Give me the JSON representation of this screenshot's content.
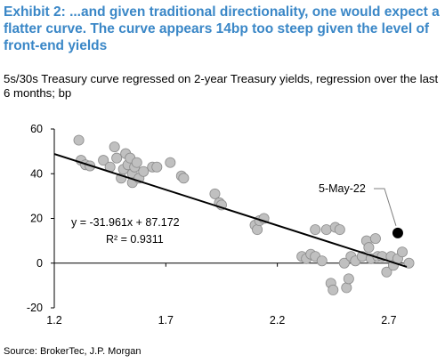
{
  "title": "Exhibit 2: ...and given traditional directionality, one would expect a flatter curve.  The curve appears 14bp too steep given the level of front-end yields",
  "subtitle": "5s/30s Treasury curve regressed on 2-year Treasury yields, regression over the last 6 months; bp",
  "source": "Source: BrokerTec, J.P. Morgan",
  "chart_data": {
    "type": "scatter",
    "xlim": [
      1.2,
      2.8
    ],
    "ylim": [
      -20,
      60
    ],
    "x_ticks": [
      "1.2",
      "1.7",
      "2.2",
      "2.7"
    ],
    "y_ticks": [
      "60",
      "40",
      "20",
      "0",
      "-20"
    ],
    "grid": false,
    "point_color": "#c0c0c0",
    "highlight_color": "#000000",
    "regression": {
      "slope": -31.961,
      "intercept": 87.172,
      "x_range": [
        1.2,
        2.78
      ]
    },
    "equation_label": "y = -31.961x + 87.172",
    "r2_label": "R² = 0.9311",
    "highlight": {
      "label": "5-May-22",
      "x": 2.74,
      "y": 13.5
    },
    "points": [
      {
        "x": 1.31,
        "y": 55
      },
      {
        "x": 1.32,
        "y": 46
      },
      {
        "x": 1.34,
        "y": 44
      },
      {
        "x": 1.36,
        "y": 43.5
      },
      {
        "x": 1.42,
        "y": 46
      },
      {
        "x": 1.45,
        "y": 43
      },
      {
        "x": 1.47,
        "y": 52
      },
      {
        "x": 1.48,
        "y": 47
      },
      {
        "x": 1.5,
        "y": 38
      },
      {
        "x": 1.51,
        "y": 42
      },
      {
        "x": 1.52,
        "y": 49
      },
      {
        "x": 1.53,
        "y": 44
      },
      {
        "x": 1.54,
        "y": 47
      },
      {
        "x": 1.55,
        "y": 40
      },
      {
        "x": 1.55,
        "y": 36
      },
      {
        "x": 1.56,
        "y": 43
      },
      {
        "x": 1.57,
        "y": 45
      },
      {
        "x": 1.58,
        "y": 38
      },
      {
        "x": 1.6,
        "y": 41
      },
      {
        "x": 1.64,
        "y": 43
      },
      {
        "x": 1.66,
        "y": 43
      },
      {
        "x": 1.72,
        "y": 45
      },
      {
        "x": 1.77,
        "y": 39
      },
      {
        "x": 1.78,
        "y": 38
      },
      {
        "x": 1.92,
        "y": 31
      },
      {
        "x": 1.94,
        "y": 27
      },
      {
        "x": 1.95,
        "y": 26
      },
      {
        "x": 2.1,
        "y": 17
      },
      {
        "x": 2.11,
        "y": 15
      },
      {
        "x": 2.12,
        "y": 19
      },
      {
        "x": 2.14,
        "y": 20
      },
      {
        "x": 2.31,
        "y": 3
      },
      {
        "x": 2.33,
        "y": 2
      },
      {
        "x": 2.35,
        "y": 4
      },
      {
        "x": 2.37,
        "y": 3
      },
      {
        "x": 2.37,
        "y": 15
      },
      {
        "x": 2.4,
        "y": 1
      },
      {
        "x": 2.42,
        "y": 15
      },
      {
        "x": 2.44,
        "y": -9
      },
      {
        "x": 2.45,
        "y": -12
      },
      {
        "x": 2.46,
        "y": 16
      },
      {
        "x": 2.48,
        "y": 15
      },
      {
        "x": 2.5,
        "y": 0
      },
      {
        "x": 2.51,
        "y": -11
      },
      {
        "x": 2.52,
        "y": -7
      },
      {
        "x": 2.53,
        "y": 3
      },
      {
        "x": 2.55,
        "y": 1
      },
      {
        "x": 2.58,
        "y": 3
      },
      {
        "x": 2.6,
        "y": 10
      },
      {
        "x": 2.61,
        "y": 7
      },
      {
        "x": 2.62,
        "y": 2
      },
      {
        "x": 2.64,
        "y": 11
      },
      {
        "x": 2.65,
        "y": 3
      },
      {
        "x": 2.67,
        "y": 3
      },
      {
        "x": 2.69,
        "y": -4
      },
      {
        "x": 2.71,
        "y": 3
      },
      {
        "x": 2.72,
        "y": -1
      },
      {
        "x": 2.74,
        "y": 2
      },
      {
        "x": 2.76,
        "y": 5
      },
      {
        "x": 2.79,
        "y": 0
      }
    ]
  }
}
